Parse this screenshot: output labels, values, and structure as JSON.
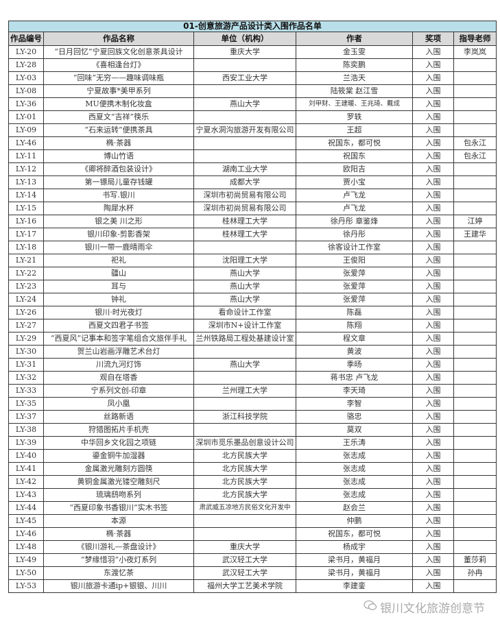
{
  "title": "01-创意旅游产品设计类入围作品名单",
  "columns": [
    "作品编号",
    "作品名称",
    "单位（机构）",
    "作者",
    "奖项",
    "指导老师"
  ],
  "rows": [
    [
      "LY-20",
      "“日月回忆”宁夏回族文化创意茶具设计",
      "重庆大学",
      "金玉雯",
      "入围",
      "李岚岚"
    ],
    [
      "LY-28",
      "《喜相逢台灯》",
      "",
      "陈奕鹏",
      "入围",
      ""
    ],
    [
      "LY-03",
      "“回味”无穷——趣味调味瓶",
      "西安工业大学",
      "兰浩天",
      "入围",
      ""
    ],
    [
      "LY-08",
      "宁夏故事*美甲系列",
      "",
      "陆筱棠 赵江雪",
      "入围",
      ""
    ],
    [
      "LY-36",
      "MU便携木制化妆盒",
      "燕山大学",
      "刘甲财、王建暖、王兆琦、戴成",
      "入围",
      ""
    ],
    [
      "LY-01",
      "西夏文“吉祥”筷乐",
      "",
      "罗轶",
      "入围",
      ""
    ],
    [
      "LY-09",
      "“石来运转”便携茶具",
      "宁夏水洞沟旅游开发有限公司",
      "王超",
      "入围",
      ""
    ],
    [
      "LY-46",
      "椭·茶器",
      "",
      "祝国东，都可悦",
      "入围",
      "包永江"
    ],
    [
      "LY-11",
      "博山竹语",
      "",
      "祝国东",
      "入围",
      "包永江"
    ],
    [
      "LY-12",
      "《卿将醉酒包装设计》",
      "湖南工业大学",
      "欧阳吉",
      "入围",
      ""
    ],
    [
      "LY-13",
      "第一镖局儿童存钱罐",
      "成都大学",
      "贾小宝",
      "入围",
      ""
    ],
    [
      "LY-14",
      "书写.银川",
      "深圳市初尚贸易有限公司",
      "卢飞龙",
      "入围",
      ""
    ],
    [
      "LY-15",
      "陶犀水杯",
      "深圳市初尚贸易有限公司",
      "卢飞龙",
      "入围",
      ""
    ],
    [
      "LY-16",
      "银之美 川之形",
      "桂林理工大学",
      "徐丹彤 章鉴烽",
      "入围",
      "江婷"
    ],
    [
      "LY-17",
      "银川印象-剪影香架",
      "桂林理工大学",
      "徐丹彤",
      "入围",
      "王建华"
    ],
    [
      "LY-18",
      "银川一带一鹿晴雨伞",
      "",
      "徐客设计工作室",
      "入围",
      ""
    ],
    [
      "LY-21",
      "祀礼",
      "沈阳理工大学",
      "王俊阳",
      "入围",
      ""
    ],
    [
      "LY-22",
      "疆山",
      "燕山大学",
      "张爱萍",
      "入围",
      ""
    ],
    [
      "LY-23",
      "耳与",
      "燕山大学",
      "张爱萍",
      "入围",
      ""
    ],
    [
      "LY-24",
      "钟礼",
      "燕山大学",
      "张爱萍",
      "入围",
      ""
    ],
    [
      "LY-26",
      "银川·时光夜灯",
      "看命设计工作室",
      "陈磊",
      "入围",
      ""
    ],
    [
      "LY-27",
      "西夏文四君子书签",
      "深圳市N+设计工作室",
      "陈翔",
      "入围",
      ""
    ],
    [
      "LY-29",
      "“西夏风”记事本和签字笔组合文旅伴手礼",
      "兰州铁路局工程处基建设计室",
      "程文章",
      "入围",
      ""
    ],
    [
      "LY-30",
      "贺兰山岩画浮雕艺术台灯",
      "",
      "黄波",
      "入围",
      ""
    ],
    [
      "LY-31",
      "川流九河灯饰",
      "燕山大学",
      "季旸",
      "入围",
      ""
    ],
    [
      "LY-32",
      "观自在塔香",
      "",
      "蒋书忠 卢飞龙",
      "入围",
      ""
    ],
    [
      "LY-33",
      "宁系列文创-印章",
      "兰州理工大学",
      "李天琦",
      "入围",
      ""
    ],
    [
      "LY-35",
      "凤小凰",
      "",
      "李智",
      "入围",
      ""
    ],
    [
      "LY-37",
      "丝路新语",
      "浙江科技学院",
      "骆忠",
      "入围",
      ""
    ],
    [
      "LY-38",
      "狩猎图拓片手机壳",
      "",
      "莫双",
      "入围",
      ""
    ],
    [
      "LY-39",
      "中华回乡文化园之项链",
      "深圳市觅乐墨品创意设计公司",
      "王乐涛",
      "入围",
      ""
    ],
    [
      "LY-40",
      "鎏金铜牛加湿器",
      "北方民族大学",
      "张志成",
      "入围",
      ""
    ],
    [
      "LY-41",
      "金属激光雕刻方圆筷",
      "北方民族大学",
      "张志成",
      "入围",
      ""
    ],
    [
      "LY-42",
      "黄铜金属激光镂空雕刻尺",
      "北方民族大学",
      "张志成",
      "入围",
      ""
    ],
    [
      "LY-43",
      "琉璃鸱吻系列",
      "北方民族大学",
      "张志成",
      "入围",
      ""
    ],
    [
      "LY-44",
      "“西夏印象书香银川”实木书签",
      "肃武威五凉地方民俗文化开发中",
      "赵会兰",
      "入围",
      ""
    ],
    [
      "LY-45",
      "本源",
      "",
      "仲鹏",
      "入围",
      ""
    ],
    [
      "LY-46",
      "椭·茶器",
      "",
      "祝国东，都可悦",
      "入围",
      ""
    ],
    [
      "LY-48",
      "《银川游礼—茶盘设计》",
      "重庆大学",
      "杨成宇",
      "入围",
      ""
    ],
    [
      "LY-49",
      "“梦缘惜羽”小夜灯系列",
      "武汉轻工大学",
      "梁书月，黄福月",
      "入围",
      "董莎莉"
    ],
    [
      "LY-50",
      "东渡忆茶",
      "武汉轻工大学",
      "梁书月，黄福月",
      "入围",
      "孙冉"
    ],
    [
      "LY-53",
      "银川旅游卡通ip+银银、川川",
      "福州大学工艺美术学院",
      "李建銮",
      "入围",
      ""
    ]
  ],
  "watermark": {
    "text": "银川文化旅游创意节",
    "icon": "wechat-icon"
  },
  "colors": {
    "title_bg": "#b9e0ea",
    "header_bg": "#d9d9d9"
  }
}
